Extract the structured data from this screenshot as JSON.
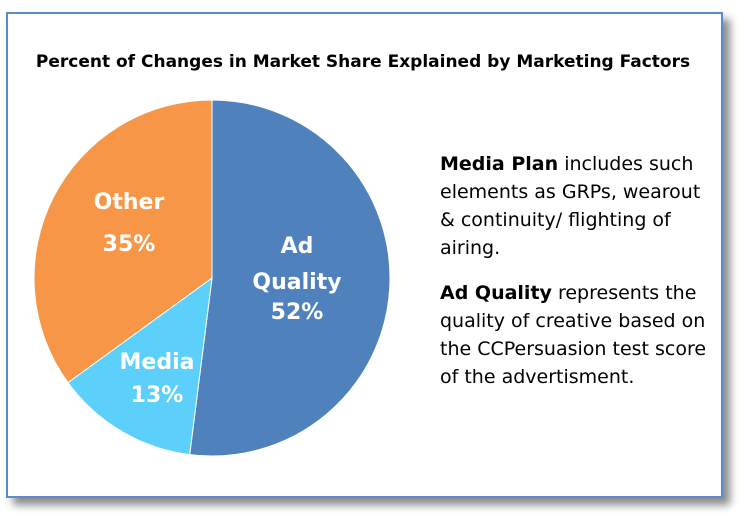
{
  "chart_data": {
    "type": "pie",
    "title": "Percent of Changes in Market Share Explained by Marketing Factors",
    "categories": [
      "Ad Quality",
      "Media",
      "Other"
    ],
    "values": [
      52,
      13,
      35
    ],
    "value_labels": [
      "52%",
      "13%",
      "35%"
    ],
    "colors": [
      "#4f81bd",
      "#5ccffa",
      "#f79646"
    ],
    "annotations": [
      {
        "bold": "Media Plan",
        "text": "includes such elements as GRPs, wearout & continuity/ flighting of airing."
      },
      {
        "bold": "Ad Quality",
        "text": "represents the quality of creative based on the CCPersuasion test score of the advertisment."
      }
    ]
  }
}
